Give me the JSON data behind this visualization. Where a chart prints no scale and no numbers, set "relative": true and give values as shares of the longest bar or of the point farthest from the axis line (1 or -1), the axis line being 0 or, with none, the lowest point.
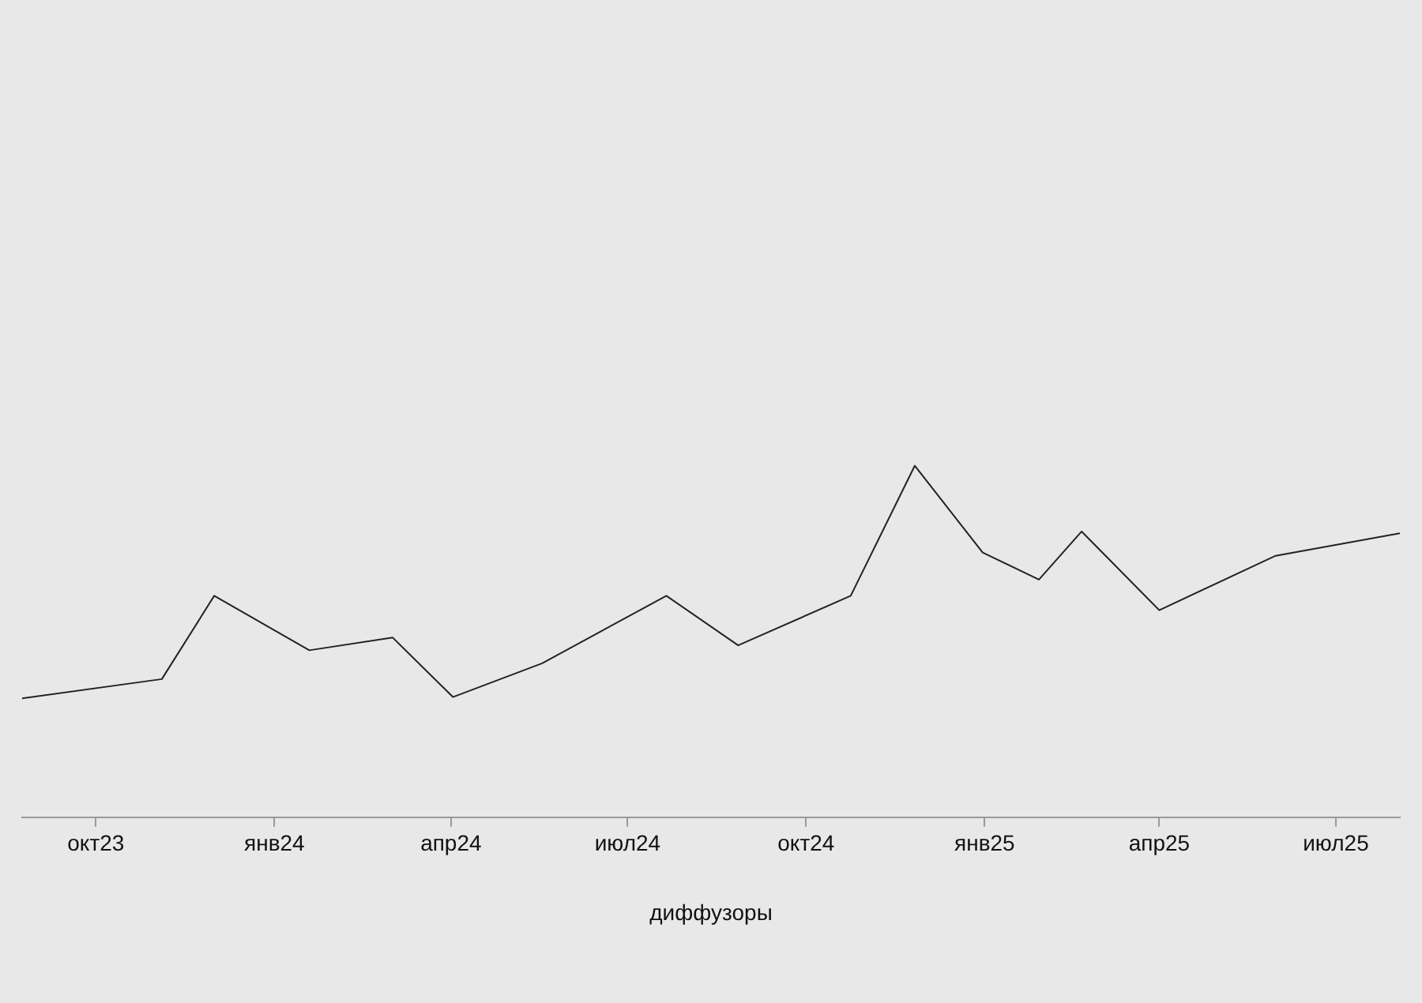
{
  "chart_data": {
    "type": "line",
    "relative": true,
    "xlabel": "диффузоры",
    "x": [
      "2023-08-24",
      "2023-11-04",
      "2023-12-01",
      "2024-01-19",
      "2024-03-02",
      "2024-04-02",
      "2024-05-18",
      "2024-07-21",
      "2024-08-27",
      "2024-10-24",
      "2024-11-26",
      "2024-12-31",
      "2025-01-29",
      "2025-02-20",
      "2025-04-01",
      "2025-05-31",
      "2025-08-03"
    ],
    "series": [
      {
        "color": "#222222",
        "values": [
          0.338,
          0.393,
          0.63,
          0.475,
          0.511,
          0.342,
          0.438,
          0.63,
          0.489,
          0.63,
          1,
          0.753,
          0.676,
          0.813,
          0.589,
          0.744,
          0.808
        ]
      }
    ],
    "xlim": [
      "2023-08-24",
      "2025-08-03"
    ],
    "xticks": [
      {
        "value": "2023-10-01",
        "label": "окт23"
      },
      {
        "value": "2024-01-01",
        "label": "янв24"
      },
      {
        "value": "2024-04-01",
        "label": "апр24"
      },
      {
        "value": "2024-07-01",
        "label": "июл24"
      },
      {
        "value": "2024-10-01",
        "label": "окт24"
      },
      {
        "value": "2025-01-01",
        "label": "янв25"
      },
      {
        "value": "2025-04-01",
        "label": "апр25"
      },
      {
        "value": "2025-07-01",
        "label": "июл25"
      }
    ],
    "grid": false,
    "legend": false,
    "marker": "none",
    "line_style": "solid"
  }
}
